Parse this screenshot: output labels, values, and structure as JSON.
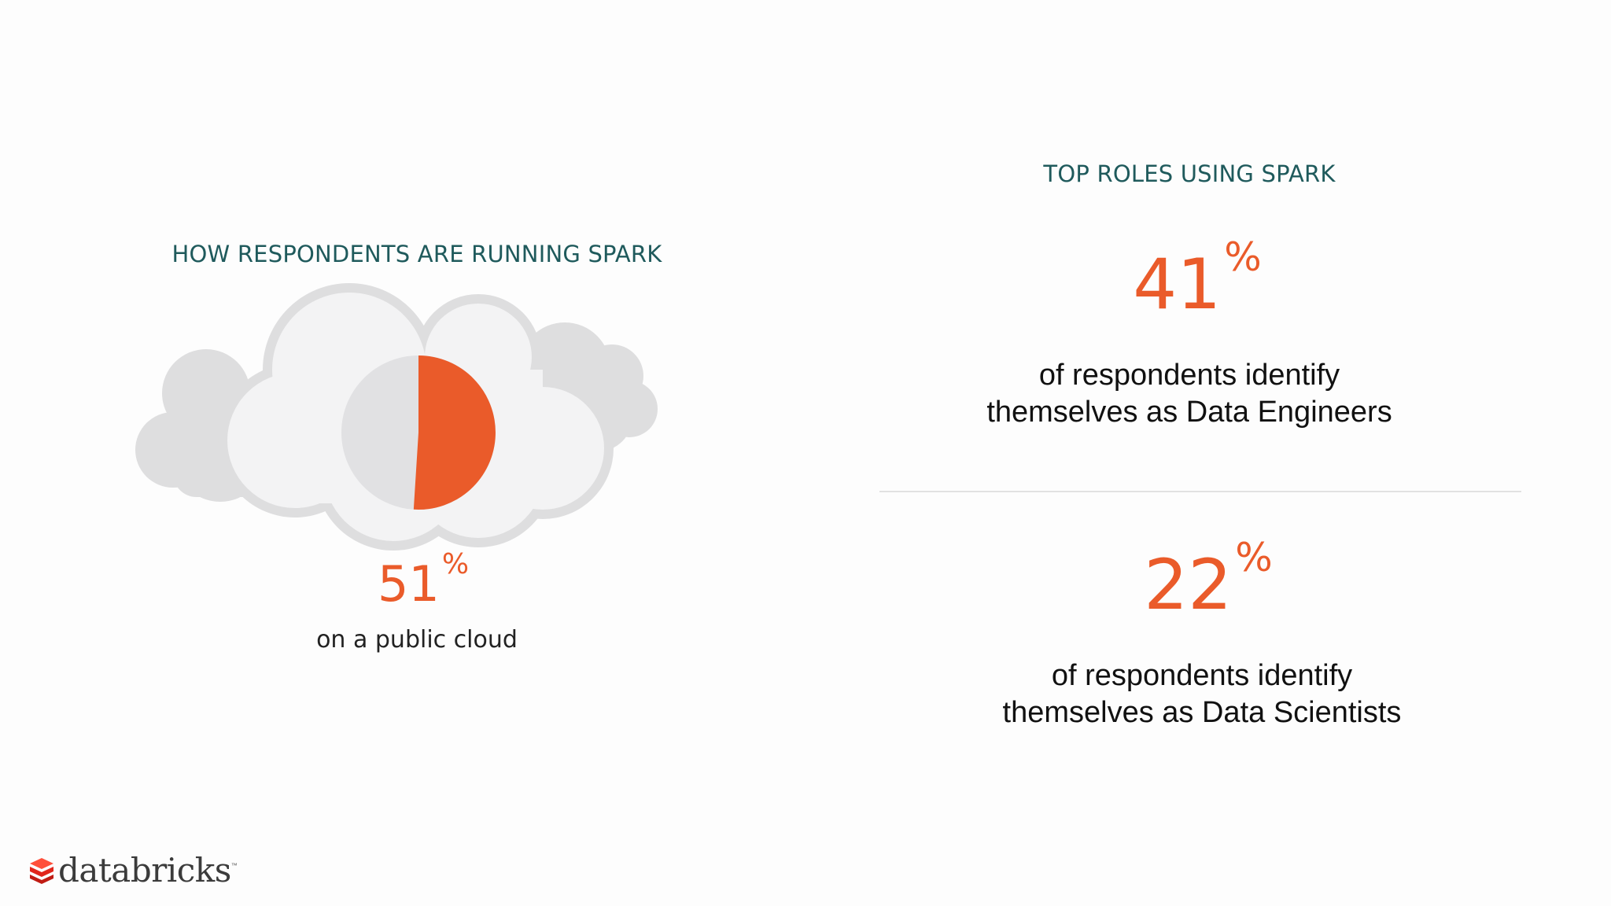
{
  "left": {
    "heading": "HOW RESPONDENTS ARE RUNNING SPARK",
    "stat_value": "51",
    "stat_unit": "%",
    "stat_caption": "on a public cloud",
    "public_cloud_share": 51
  },
  "right": {
    "heading": "TOP ROLES USING SPARK",
    "roles": [
      {
        "value": "41",
        "unit": "%",
        "line1": "of respondents identify",
        "line2": "themselves as Data Engineers"
      },
      {
        "value": "22",
        "unit": "%",
        "line1": "of respondents identify",
        "line2": "themselves as Data Scientists"
      }
    ]
  },
  "logo": {
    "text": "databricks",
    "tm": "™"
  },
  "colors": {
    "accent": "#ea5b2a",
    "heading": "#1f5a5c",
    "cloud_back": "#dededf",
    "cloud_front": "#f3f3f4",
    "pie_rest": "#e1e1e3",
    "logo_red": "#e1251b"
  }
}
